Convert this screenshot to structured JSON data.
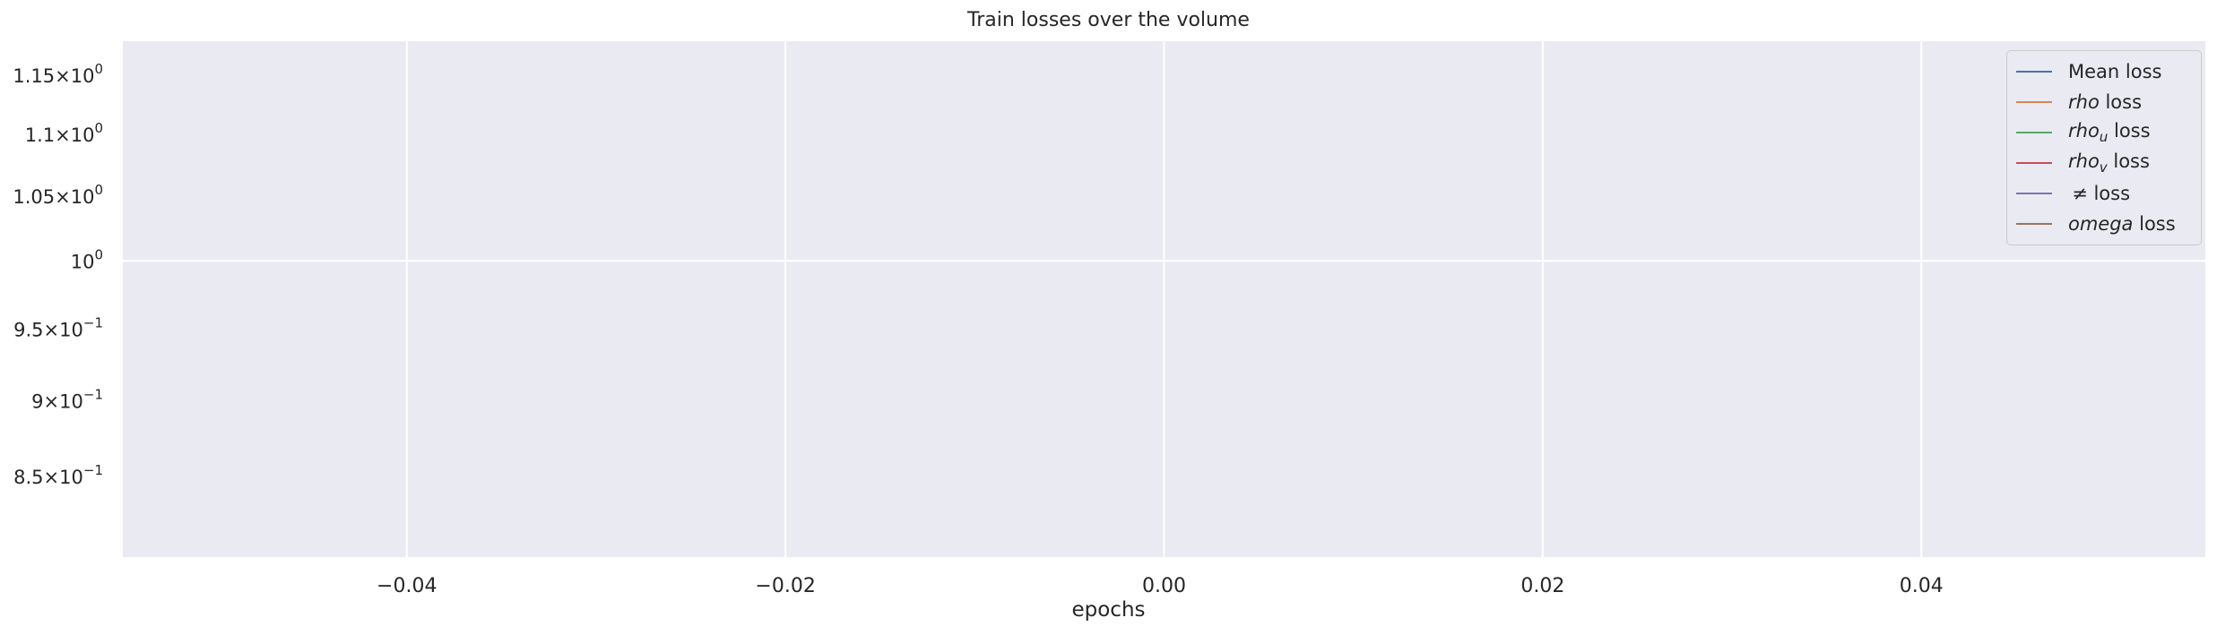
{
  "chart_data": {
    "type": "line",
    "title": "Train losses over the volume",
    "xlabel": "epochs",
    "ylabel": "",
    "y_scale": "log",
    "xlim": [
      -0.055,
      0.055
    ],
    "ylim": [
      0.8,
      1.18
    ],
    "x_ticks": [
      -0.04,
      -0.02,
      0.0,
      0.02,
      0.04
    ],
    "x_tick_labels": [
      "−0.04",
      "−0.02",
      "0.00",
      "0.02",
      "0.04"
    ],
    "y_ticks": [
      {
        "value": 1.15,
        "mantissa": "1.15",
        "exponent": "0"
      },
      {
        "value": 1.1,
        "mantissa": "1.1",
        "exponent": "0"
      },
      {
        "value": 1.05,
        "mantissa": "1.05",
        "exponent": "0"
      },
      {
        "value": 1.0,
        "mantissa": "",
        "exponent": "0"
      },
      {
        "value": 0.95,
        "mantissa": "9.5",
        "exponent": "−1"
      },
      {
        "value": 0.9,
        "mantissa": "9",
        "exponent": "−1"
      },
      {
        "value": 0.85,
        "mantissa": "8.5",
        "exponent": "−1"
      }
    ],
    "grid": true,
    "legend_position": "top-right",
    "series": [
      {
        "name": "Mean loss",
        "color": "#4c72b0",
        "x": [],
        "y": []
      },
      {
        "name": "rho loss",
        "name_italic": "rho",
        "name_rest": " loss",
        "color": "#dd8452",
        "x": [],
        "y": []
      },
      {
        "name": "rho_u loss",
        "name_italic": "rho",
        "name_sub": "u",
        "name_rest": " loss",
        "color": "#55a868",
        "x": [],
        "y": []
      },
      {
        "name": "rho_v loss",
        "name_italic": "rho",
        "name_sub": "v",
        "name_rest": " loss",
        "color": "#c44e52",
        "x": [],
        "y": []
      },
      {
        "name": "≠ loss",
        "name_plain": "≠",
        "name_rest": " loss",
        "color": "#8172b3",
        "x": [],
        "y": []
      },
      {
        "name": "omega loss",
        "name_italic": "omega",
        "name_rest": " loss",
        "color": "#937860",
        "x": [],
        "y": []
      }
    ]
  },
  "colors": {
    "axes_background": "#eaeaf2",
    "grid": "#ffffff",
    "text": "#262626"
  }
}
